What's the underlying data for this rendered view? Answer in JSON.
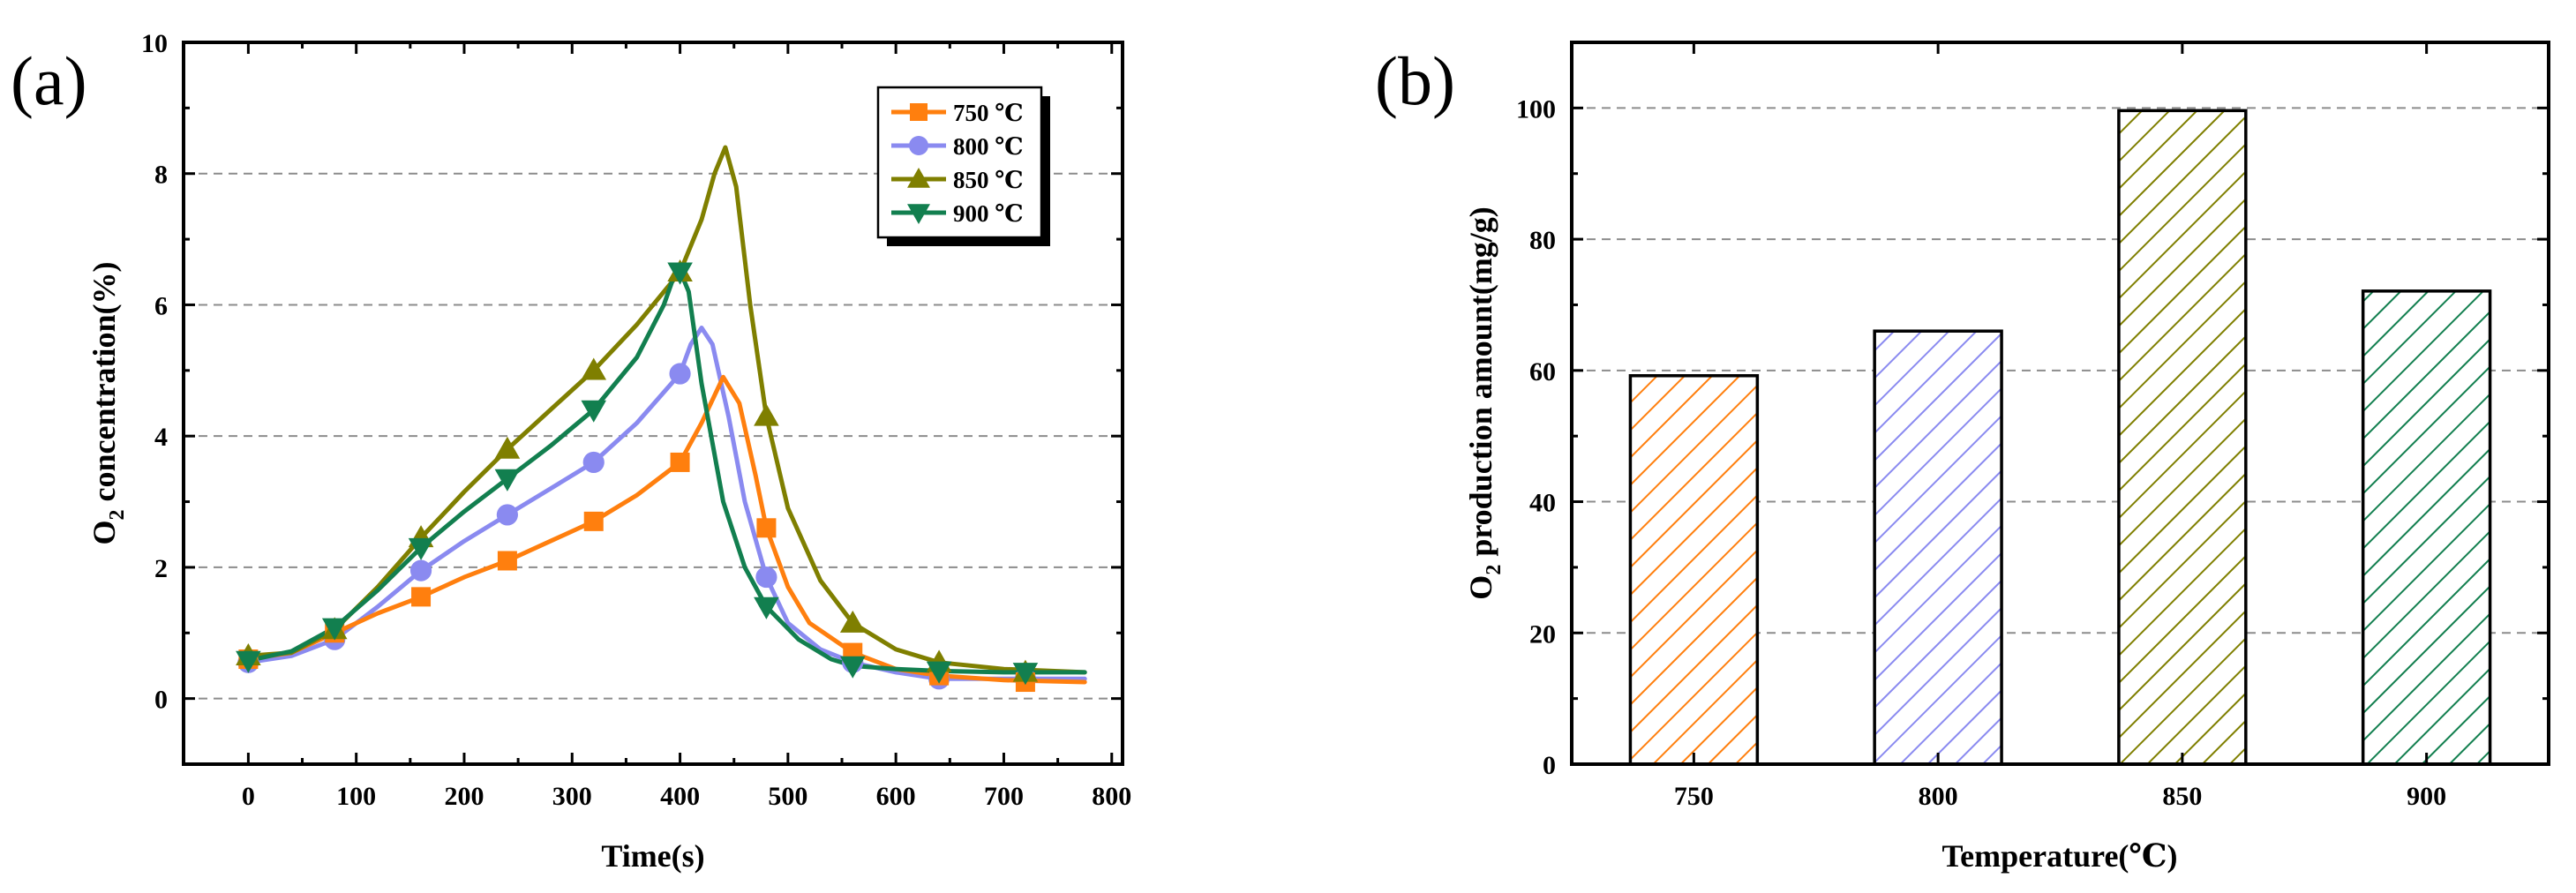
{
  "chart_data": [
    {
      "panel_label": "(a)",
      "type": "line",
      "xlabel": "Time(s)",
      "ylabel": "O2 concentration(%)",
      "ylabel_main": "O",
      "ylabel_sub": "2",
      "ylabel_rest": " concentration(%)",
      "xlim": [
        -60,
        810
      ],
      "ylim": [
        -1,
        10
      ],
      "xticks": [
        0,
        100,
        200,
        300,
        400,
        500,
        600,
        700,
        800
      ],
      "yticks": [
        0,
        2,
        4,
        6,
        8,
        10
      ],
      "grid": "horizontal dashed",
      "legend_position": "top-right",
      "series": [
        {
          "name": "750 ℃",
          "color": "#FF7F0E",
          "marker": "square",
          "markers": [
            [
              0,
              0.6
            ],
            [
              80,
              1.0
            ],
            [
              160,
              1.55
            ],
            [
              240,
              2.1
            ],
            [
              320,
              2.7
            ],
            [
              400,
              3.6
            ],
            [
              480,
              2.6
            ],
            [
              560,
              0.7
            ],
            [
              640,
              0.35
            ],
            [
              720,
              0.25
            ]
          ],
          "curve": [
            [
              0,
              0.6
            ],
            [
              40,
              0.7
            ],
            [
              80,
              1.0
            ],
            [
              120,
              1.3
            ],
            [
              160,
              1.55
            ],
            [
              200,
              1.85
            ],
            [
              240,
              2.1
            ],
            [
              280,
              2.4
            ],
            [
              320,
              2.7
            ],
            [
              360,
              3.1
            ],
            [
              400,
              3.6
            ],
            [
              420,
              4.2
            ],
            [
              440,
              4.9
            ],
            [
              455,
              4.5
            ],
            [
              470,
              3.4
            ],
            [
              480,
              2.6
            ],
            [
              500,
              1.7
            ],
            [
              520,
              1.15
            ],
            [
              560,
              0.7
            ],
            [
              600,
              0.45
            ],
            [
              640,
              0.35
            ],
            [
              700,
              0.28
            ],
            [
              775,
              0.25
            ]
          ]
        },
        {
          "name": "800 ℃",
          "color": "#8A8AF0",
          "marker": "circle",
          "markers": [
            [
              0,
              0.55
            ],
            [
              80,
              0.9
            ],
            [
              160,
              1.95
            ],
            [
              240,
              2.8
            ],
            [
              320,
              3.6
            ],
            [
              400,
              4.95
            ],
            [
              480,
              1.85
            ],
            [
              560,
              0.55
            ],
            [
              640,
              0.3
            ],
            [
              720,
              0.3
            ]
          ],
          "curve": [
            [
              0,
              0.55
            ],
            [
              40,
              0.65
            ],
            [
              80,
              0.9
            ],
            [
              120,
              1.4
            ],
            [
              160,
              1.95
            ],
            [
              200,
              2.4
            ],
            [
              240,
              2.8
            ],
            [
              280,
              3.2
            ],
            [
              320,
              3.6
            ],
            [
              360,
              4.2
            ],
            [
              400,
              4.95
            ],
            [
              410,
              5.4
            ],
            [
              420,
              5.65
            ],
            [
              430,
              5.4
            ],
            [
              445,
              4.3
            ],
            [
              460,
              3.0
            ],
            [
              480,
              1.85
            ],
            [
              500,
              1.15
            ],
            [
              530,
              0.75
            ],
            [
              560,
              0.55
            ],
            [
              600,
              0.4
            ],
            [
              640,
              0.3
            ],
            [
              700,
              0.3
            ],
            [
              775,
              0.3
            ]
          ]
        },
        {
          "name": "850 ℃",
          "color": "#7F7F00",
          "marker": "triangle-up",
          "markers": [
            [
              0,
              0.65
            ],
            [
              80,
              1.05
            ],
            [
              160,
              2.45
            ],
            [
              240,
              3.8
            ],
            [
              320,
              5.0
            ],
            [
              400,
              6.5
            ],
            [
              480,
              4.3
            ],
            [
              560,
              1.15
            ],
            [
              640,
              0.55
            ],
            [
              720,
              0.4
            ]
          ],
          "curve": [
            [
              0,
              0.65
            ],
            [
              40,
              0.7
            ],
            [
              80,
              1.05
            ],
            [
              120,
              1.7
            ],
            [
              160,
              2.45
            ],
            [
              200,
              3.15
            ],
            [
              240,
              3.8
            ],
            [
              280,
              4.4
            ],
            [
              320,
              5.0
            ],
            [
              360,
              5.7
            ],
            [
              400,
              6.5
            ],
            [
              420,
              7.3
            ],
            [
              432,
              8.0
            ],
            [
              442,
              8.4
            ],
            [
              452,
              7.8
            ],
            [
              465,
              6.0
            ],
            [
              480,
              4.3
            ],
            [
              500,
              2.9
            ],
            [
              530,
              1.8
            ],
            [
              560,
              1.15
            ],
            [
              600,
              0.75
            ],
            [
              640,
              0.55
            ],
            [
              700,
              0.45
            ],
            [
              775,
              0.4
            ]
          ]
        },
        {
          "name": "900 ℃",
          "color": "#127F4F",
          "marker": "triangle-down",
          "markers": [
            [
              0,
              0.58
            ],
            [
              80,
              1.08
            ],
            [
              160,
              2.3
            ],
            [
              240,
              3.35
            ],
            [
              320,
              4.4
            ],
            [
              400,
              6.5
            ],
            [
              480,
              1.4
            ],
            [
              560,
              0.5
            ],
            [
              640,
              0.42
            ],
            [
              720,
              0.4
            ]
          ],
          "curve": [
            [
              0,
              0.58
            ],
            [
              40,
              0.72
            ],
            [
              80,
              1.08
            ],
            [
              120,
              1.65
            ],
            [
              160,
              2.3
            ],
            [
              200,
              2.85
            ],
            [
              240,
              3.35
            ],
            [
              280,
              3.85
            ],
            [
              320,
              4.4
            ],
            [
              360,
              5.2
            ],
            [
              385,
              6.0
            ],
            [
              398,
              6.6
            ],
            [
              408,
              6.2
            ],
            [
              420,
              4.8
            ],
            [
              440,
              3.0
            ],
            [
              460,
              2.0
            ],
            [
              480,
              1.4
            ],
            [
              510,
              0.9
            ],
            [
              540,
              0.6
            ],
            [
              560,
              0.5
            ],
            [
              600,
              0.45
            ],
            [
              640,
              0.42
            ],
            [
              700,
              0.4
            ],
            [
              775,
              0.4
            ]
          ]
        }
      ]
    },
    {
      "panel_label": "(b)",
      "type": "bar",
      "xlabel": "Temperature(℃)",
      "ylabel": "O2 production amount(mg/g)",
      "ylabel_main": "O",
      "ylabel_sub": "2",
      "ylabel_rest": " production amount(mg/g)",
      "categories": [
        "750",
        "800",
        "850",
        "900"
      ],
      "values": [
        59.2,
        66.0,
        99.6,
        72.1
      ],
      "colors": [
        "#FF7F0E",
        "#8A8AF0",
        "#7F7F00",
        "#127F4F"
      ],
      "fill_pattern": "diagonal hatch",
      "ylim": [
        0,
        110
      ],
      "yticks": [
        0,
        20,
        40,
        60,
        80,
        100
      ],
      "grid": "horizontal dashed"
    }
  ]
}
